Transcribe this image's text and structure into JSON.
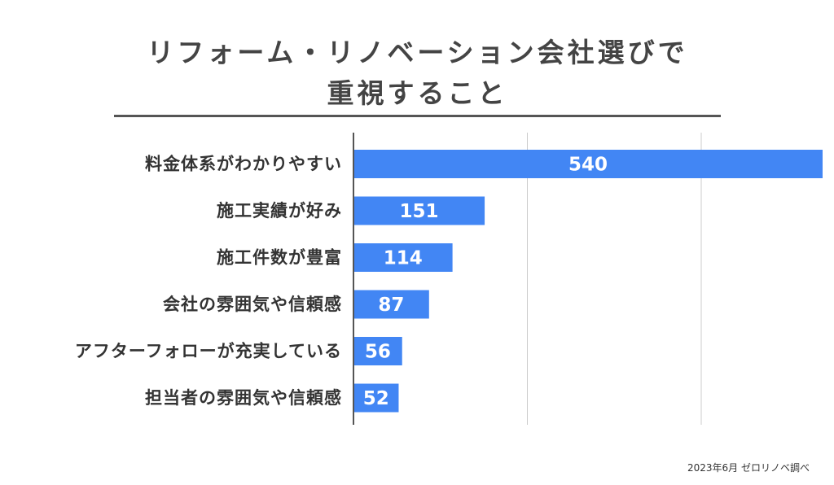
{
  "title_line1": "リフォーム・リノベーション会社選びで",
  "title_line2": "重視すること",
  "source": "2023年6月 ゼロリノベ調べ",
  "colors": {
    "bar": "#4286f4",
    "axis": "#555555",
    "grid": "#cccccc",
    "text": "#333333"
  },
  "chart_data": {
    "type": "bar",
    "orientation": "horizontal",
    "title": "リフォーム・リノベーション会社選びで重視すること",
    "categories": [
      "料金体系がわかりやすい",
      "施工実績が好み",
      "施工件数が豊富",
      "会社の雰囲気や信頼感",
      "アフターフォローが充実している",
      "担当者の雰囲気や信頼感"
    ],
    "values": [
      540,
      151,
      114,
      87,
      56,
      52
    ],
    "xlim": [
      0,
      540
    ],
    "grid": true,
    "data_labels": true
  }
}
